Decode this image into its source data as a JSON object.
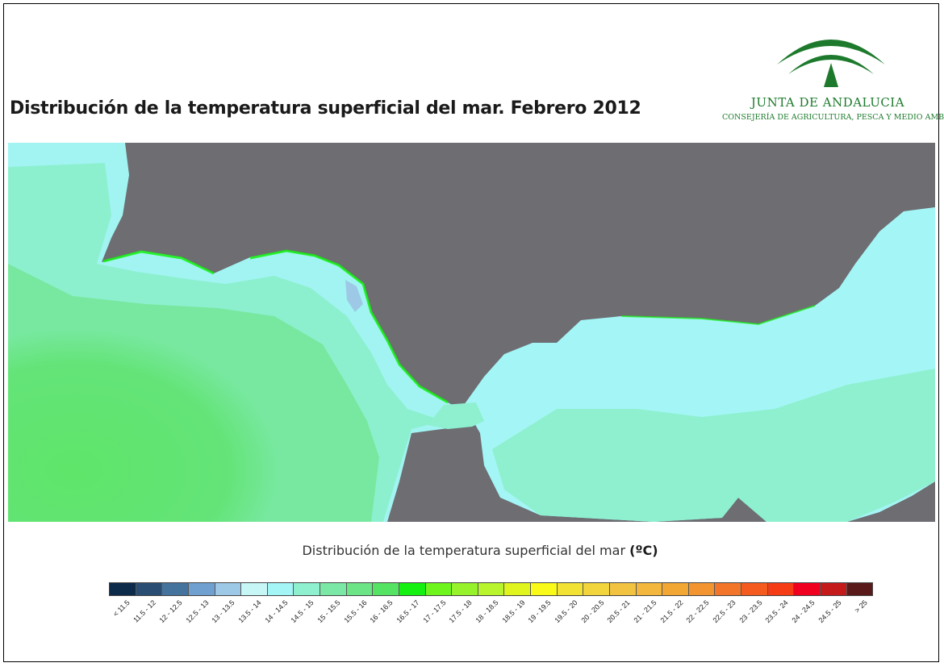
{
  "title": "Distribución de la temperatura superficial del mar. Febrero 2012",
  "logo": {
    "name": "JUNTA DE ANDALUCIA",
    "subtitle": "CONSEJERÍA DE AGRICULTURA, PESCA Y MEDIO AMBIENTE",
    "color": "#1d7a2c"
  },
  "map": {
    "land_color": "#6d6d72",
    "classes_present": [
      "13.5 - 14",
      "14 - 14.5",
      "14.5 - 15",
      "15 - 15.5",
      "15.5 - 16",
      "16 - 16.5",
      "16.5 - 17"
    ]
  },
  "legend": {
    "title": "Distribución de la temperatura superficial del mar",
    "unit": "(ºC)",
    "classes": [
      {
        "label": "< 11.5",
        "color": "#0c2a4a"
      },
      {
        "label": "11.5 - 12",
        "color": "#2a4e73"
      },
      {
        "label": "12 - 12.5",
        "color": "#44739d"
      },
      {
        "label": "12.5 - 13",
        "color": "#6fa0cf"
      },
      {
        "label": "13 - 13.5",
        "color": "#9ec9e6"
      },
      {
        "label": "13.5 - 14",
        "color": "#c6f6f6"
      },
      {
        "label": "14 - 14.5",
        "color": "#a4f6f6"
      },
      {
        "label": "14.5 - 15",
        "color": "#8ef0cf"
      },
      {
        "label": "15 - 15.5",
        "color": "#7be9a5"
      },
      {
        "label": "15.5 - 16",
        "color": "#6be586"
      },
      {
        "label": "16 - 16.5",
        "color": "#55e363"
      },
      {
        "label": "16.5 - 17",
        "color": "#14f00f"
      },
      {
        "label": "17 - 17.5",
        "color": "#6ef51b"
      },
      {
        "label": "17.5 - 18",
        "color": "#96f22a"
      },
      {
        "label": "18 - 18.5",
        "color": "#b8f52c"
      },
      {
        "label": "18.5 - 19",
        "color": "#e0f51e"
      },
      {
        "label": "19 - 19.5",
        "color": "#fafa18"
      },
      {
        "label": "19.5 - 20",
        "color": "#f2e233"
      },
      {
        "label": "20 - 20.5",
        "color": "#f2d53c"
      },
      {
        "label": "20.5 - 21",
        "color": "#f2c241"
      },
      {
        "label": "21 - 21.5",
        "color": "#f2b73c"
      },
      {
        "label": "21.5 - 22",
        "color": "#f2a633"
      },
      {
        "label": "22 - 22.5",
        "color": "#f29530"
      },
      {
        "label": "22.5 - 23",
        "color": "#f2752a"
      },
      {
        "label": "23 - 23.5",
        "color": "#f55a1e"
      },
      {
        "label": "23.5 - 24",
        "color": "#f53c14"
      },
      {
        "label": "24 - 24.5",
        "color": "#f0001e"
      },
      {
        "label": "24.5 - 25",
        "color": "#c41a1a"
      },
      {
        "label": "> 25",
        "color": "#5a1a1a"
      }
    ]
  }
}
